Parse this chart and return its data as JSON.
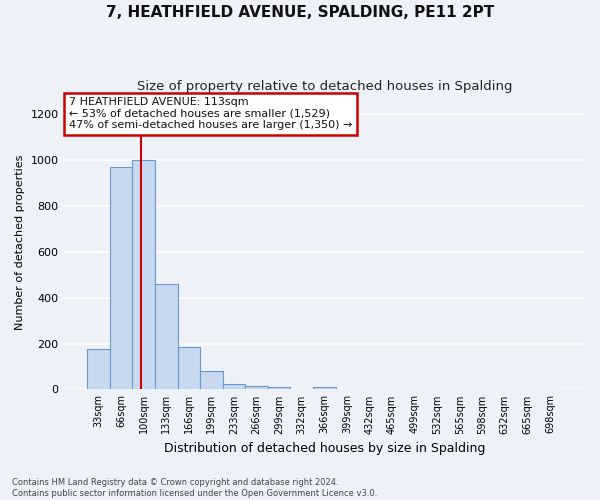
{
  "title": "7, HEATHFIELD AVENUE, SPALDING, PE11 2PT",
  "subtitle": "Size of property relative to detached houses in Spalding",
  "xlabel": "Distribution of detached houses by size in Spalding",
  "ylabel": "Number of detached properties",
  "categories": [
    "33sqm",
    "66sqm",
    "100sqm",
    "133sqm",
    "166sqm",
    "199sqm",
    "233sqm",
    "266sqm",
    "299sqm",
    "332sqm",
    "366sqm",
    "399sqm",
    "432sqm",
    "465sqm",
    "499sqm",
    "532sqm",
    "565sqm",
    "598sqm",
    "632sqm",
    "665sqm",
    "698sqm"
  ],
  "values": [
    175,
    970,
    1000,
    460,
    185,
    80,
    22,
    16,
    10,
    0,
    10,
    0,
    0,
    0,
    0,
    0,
    0,
    0,
    0,
    0,
    0
  ],
  "bar_color": "#c8d8ee",
  "bar_edge_color": "#6699cc",
  "marker_bin_index": 2,
  "annotation_text": "7 HEATHFIELD AVENUE: 113sqm\n← 53% of detached houses are smaller (1,529)\n47% of semi-detached houses are larger (1,350) →",
  "annotation_box_color": "#ffffff",
  "annotation_box_edge_color": "#cc0000",
  "ylim": [
    0,
    1280
  ],
  "yticks": [
    0,
    200,
    400,
    600,
    800,
    1000,
    1200
  ],
  "footer_text": "Contains HM Land Registry data © Crown copyright and database right 2024.\nContains public sector information licensed under the Open Government Licence v3.0.",
  "bg_color": "#eef2f8",
  "grid_color": "#ffffff",
  "title_fontsize": 11,
  "subtitle_fontsize": 9.5
}
